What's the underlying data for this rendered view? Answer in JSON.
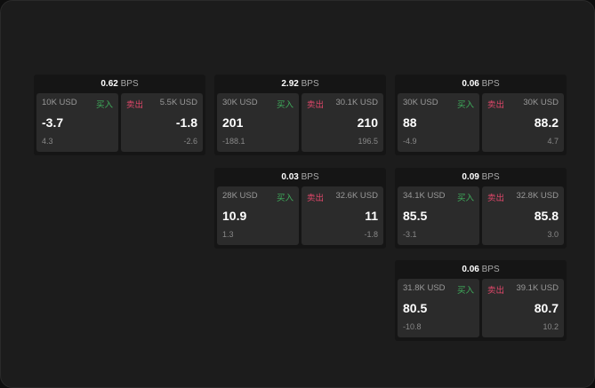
{
  "unit": "BPS",
  "buy_label": "买入",
  "sell_label": "卖出",
  "cards": [
    {
      "bps": "0.62",
      "bid_size": "10K USD",
      "bid": "-3.7",
      "bid_sub": "4.3",
      "ask_size": "5.5K USD",
      "ask": "-1.8",
      "ask_sub": "-2.6"
    },
    {
      "bps": "2.92",
      "bid_size": "30K USD",
      "bid": "201",
      "bid_sub": "-188.1",
      "ask_size": "30.1K USD",
      "ask": "210",
      "ask_sub": "196.5"
    },
    {
      "bps": "0.06",
      "bid_size": "30K USD",
      "bid": "88",
      "bid_sub": "-4.9",
      "ask_size": "30K USD",
      "ask": "88.2",
      "ask_sub": "4.7"
    },
    {
      "bps": "0.03",
      "bid_size": "28K USD",
      "bid": "10.9",
      "bid_sub": "1.3",
      "ask_size": "32.6K USD",
      "ask": "11",
      "ask_sub": "-1.8"
    },
    {
      "bps": "0.09",
      "bid_size": "34.1K USD",
      "bid": "85.5",
      "bid_sub": "-3.1",
      "ask_size": "32.8K USD",
      "ask": "85.8",
      "ask_sub": "3.0"
    },
    {
      "bps": "0.06",
      "bid_size": "31.8K USD",
      "bid": "80.5",
      "bid_sub": "-10.8",
      "ask_size": "39.1K USD",
      "ask": "80.7",
      "ask_sub": "10.2"
    }
  ],
  "colors": {
    "buy": "#3fae5c",
    "sell": "#e0476a"
  }
}
